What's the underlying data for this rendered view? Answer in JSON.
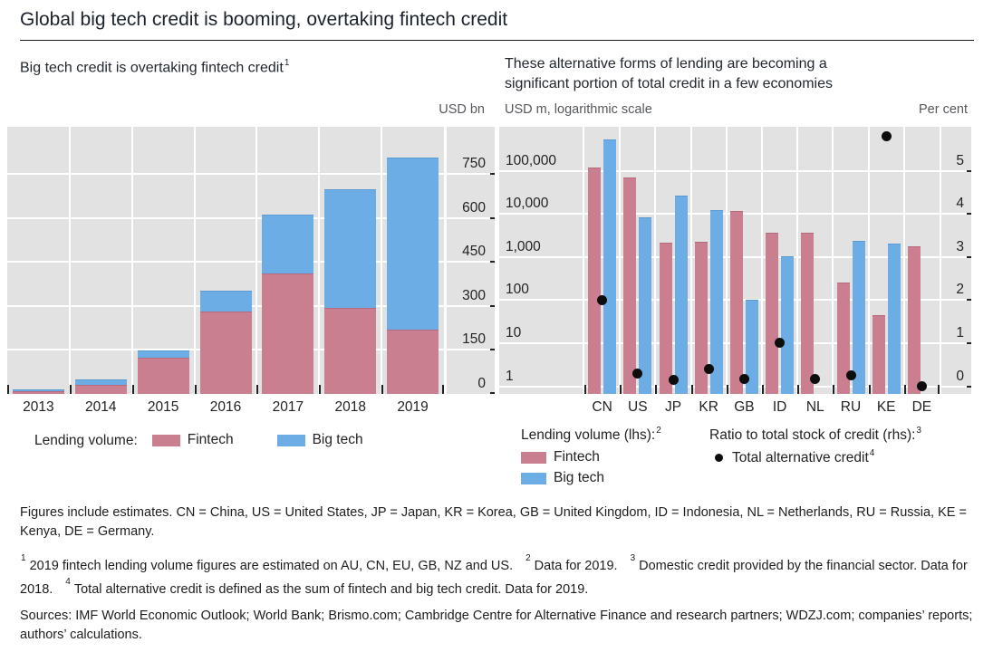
{
  "header": {
    "title": "Global big tech credit is booming, overtaking fintech credit"
  },
  "panels": {
    "left": {
      "subtitle": "Big tech credit is overtaking fintech credit",
      "subtitle_sup": "1",
      "unit_right": "USD bn",
      "legend_prefix": "Lending volume:"
    },
    "right": {
      "subtitle_line1": "These alternative forms of lending are becoming a",
      "subtitle_line2": "significant portion of total credit in a few economies",
      "unit_left": "USD m, logarithmic scale",
      "unit_right": "Per cent",
      "legend_left_title": "Lending volume (lhs):",
      "legend_left_title_sup": "2",
      "legend_right_title": "Ratio to total stock of credit (rhs):",
      "legend_right_title_sup": "3",
      "dot_label": "Total alternative credit",
      "dot_label_sup": "4"
    }
  },
  "colors": {
    "fintech": "#c97f90",
    "fintech_edge": "#b56b7d",
    "bigtech": "#6bade4",
    "bigtech_edge": "#5a9ad2",
    "plot_bg": "#e3e2e2",
    "dot": "#0d0d0d"
  },
  "chart_data": [
    {
      "type": "bar",
      "stacked": true,
      "title": "Big tech credit is overtaking fintech credit",
      "ylabel": "USD bn",
      "ylim": [
        0,
        900
      ],
      "yticks": [
        0,
        150,
        300,
        450,
        600,
        750
      ],
      "grid": true,
      "legend_position": "bottom",
      "categories": [
        "2013",
        "2014",
        "2015",
        "2016",
        "2017",
        "2018",
        "2019"
      ],
      "series": [
        {
          "name": "Fintech",
          "values": [
            10,
            30,
            122,
            280,
            410,
            293,
            220
          ]
        },
        {
          "name": "Big tech",
          "values": [
            5,
            18,
            27,
            72,
            200,
            406,
            585
          ]
        }
      ]
    },
    {
      "type": "bar",
      "stacked": false,
      "title": "These alternative forms of lending are becoming a significant portion of total credit in a few economies",
      "ylabel_left": "USD m, logarithmic scale",
      "ylabel_right": "Per cent",
      "y_scale_left": "log",
      "yticks_left_values": [
        1,
        10,
        100,
        1000,
        10000,
        100000
      ],
      "yticks_left_labels": [
        "1",
        "10",
        "100",
        "1,000",
        "10,000",
        "100,000"
      ],
      "ylim_right": [
        0,
        5
      ],
      "yticks_right": [
        0,
        1,
        2,
        3,
        4,
        5
      ],
      "grid": true,
      "categories": [
        "CN",
        "US",
        "JP",
        "KR",
        "GB",
        "ID",
        "NL",
        "RU",
        "KE",
        "DE"
      ],
      "series": [
        {
          "name": "Fintech",
          "axis": "left",
          "values": [
            117000,
            70000,
            2100,
            2200,
            11800,
            3700,
            3700,
            260,
            45,
            1800
          ]
        },
        {
          "name": "Big tech",
          "axis": "left",
          "values": [
            520000,
            8200,
            27000,
            12500,
            100,
            1040,
            null,
            2300,
            2000,
            null
          ]
        }
      ],
      "dots": {
        "name": "Total alternative credit",
        "axis": "right",
        "values": [
          2.0,
          0.3,
          0.15,
          0.4,
          0.17,
          1.0,
          0.17,
          0.25,
          5.8,
          0.0
        ]
      }
    }
  ],
  "notes": {
    "abbrev": "Figures include estimates. CN = China, US = United States, JP = Japan, KR = Korea, GB = United Kingdom, ID = Indonesia, NL = Netherlands, RU = Russia, KE = Kenya, DE = Germany.",
    "footnotes": [
      {
        "sup": "1",
        "text": "2019 fintech lending volume figures are estimated on AU, CN, EU, GB, NZ and US."
      },
      {
        "sup": "2",
        "text": "Data for 2019."
      },
      {
        "sup": "3",
        "text": "Domestic credit provided by the financial sector. Data for 2018."
      },
      {
        "sup": "4",
        "text": "Total alternative credit is defined as the sum of fintech and big tech credit. Data for 2019."
      }
    ],
    "sources": "Sources: IMF World Economic Outlook; World Bank; Brismo.com; Cambridge Centre for Alternative Finance and research partners; WDZJ.com; companies’ reports; authors’ calculations."
  }
}
